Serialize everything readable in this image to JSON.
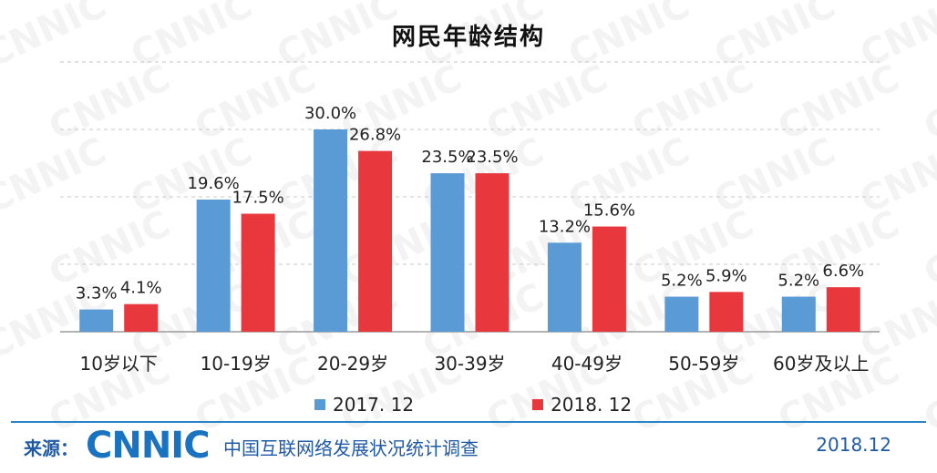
{
  "title": "网民年龄结构",
  "chart_data": {
    "type": "bar",
    "title": "网民年龄结构",
    "categories": [
      "10岁以下",
      "10-19岁",
      "20-29岁",
      "30-39岁",
      "40-49岁",
      "50-59岁",
      "60岁及以上"
    ],
    "series": [
      {
        "name": "2017. 12",
        "values": [
          3.3,
          19.6,
          30.0,
          23.5,
          13.2,
          5.2,
          5.2
        ],
        "labels": [
          "3.3%",
          "19.6%",
          "30.0%",
          "23.5%",
          "13.2%",
          "5.2%",
          "5.2%"
        ],
        "color": "#5b9bd5"
      },
      {
        "name": "2018. 12",
        "values": [
          4.1,
          17.5,
          26.8,
          23.5,
          15.6,
          5.9,
          6.6
        ],
        "labels": [
          "4.1%",
          "17.5%",
          "26.8%",
          "23.5%",
          "15.6%",
          "5.9%",
          "6.6%"
        ],
        "color": "#e8383d"
      }
    ],
    "ylim": [
      0,
      40
    ],
    "grid": true,
    "legend_position": "bottom"
  },
  "footer": {
    "source_label": "来源：",
    "logo_text": "CNNIC",
    "survey_text": "中国互联网络发展状况统计调查",
    "date": "2018.12"
  }
}
